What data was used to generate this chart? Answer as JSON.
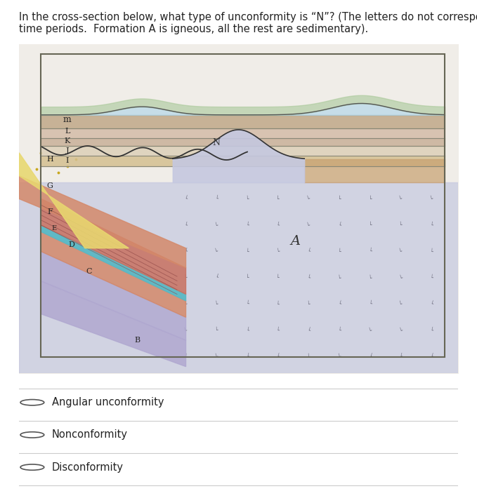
{
  "title_line1": "In the cross-section below, what type of unconformity is “N”? (The letters do not correspond to",
  "title_line2": "time periods.  Formation A is igneous, all the rest are sedimentary).",
  "title_fontsize": 10.5,
  "options": [
    "Angular unconformity",
    "Nonconformity",
    "Disconformity"
  ],
  "panel_bg": "#ffffff",
  "fig_bg": "#f5f2ee",
  "igneous_color": "#c5c8e0",
  "layer_colors": {
    "B": "#b0a8d0",
    "C": "#b0a8d0",
    "D": "#d4896a",
    "E": "#5ab8c4",
    "F": "#c87060",
    "G": "#d4896a",
    "H": "#e8d870",
    "I": "#d4c090",
    "J": "#ddd0b8",
    "K": "#c8b098",
    "L": "#d4bca8",
    "m": "#c0a888"
  },
  "upper_layer_heights": [
    3,
    3,
    2.5,
    3,
    4
  ],
  "upper_base": 63
}
